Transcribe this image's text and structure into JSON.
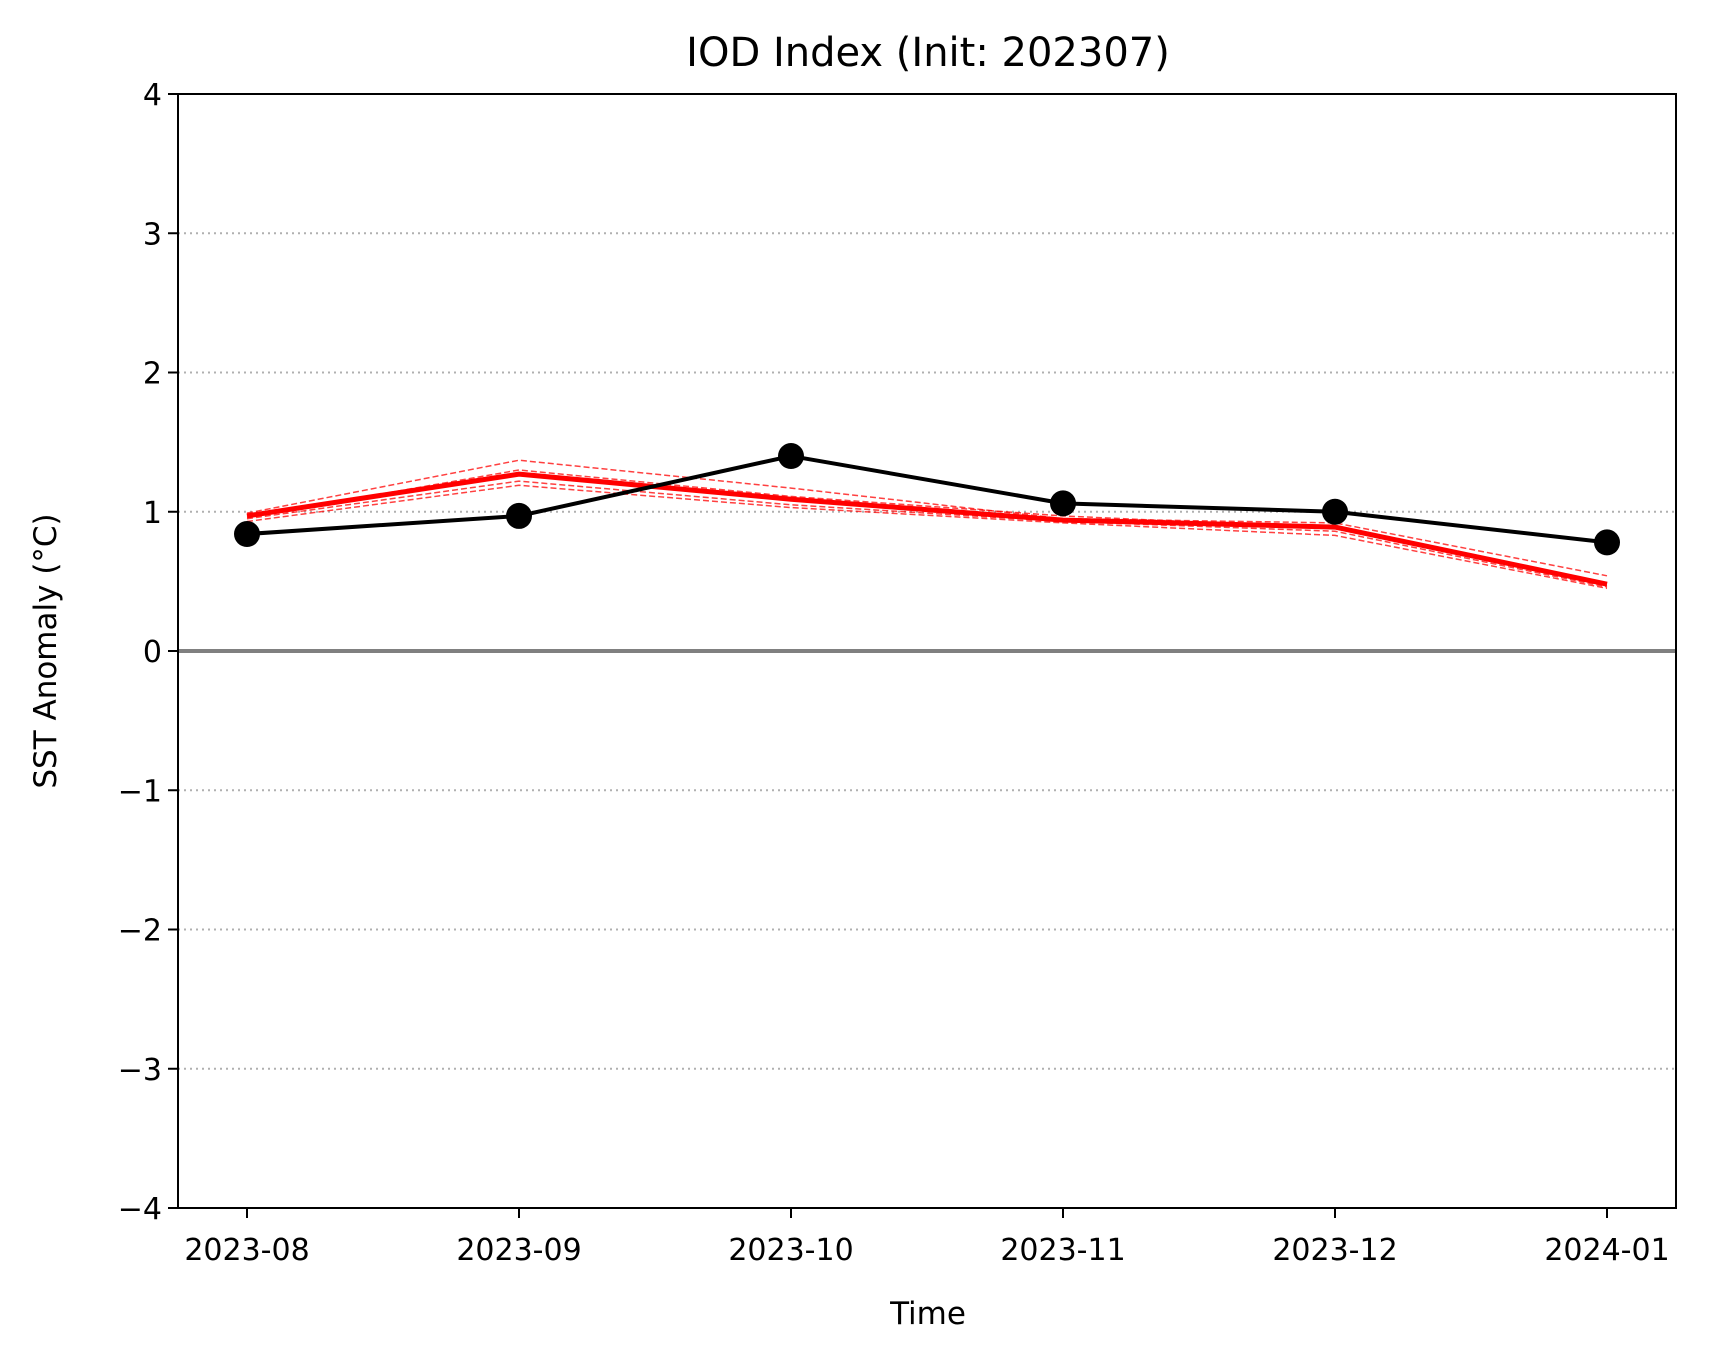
{
  "chart_data": {
    "type": "line",
    "title": "IOD Index (Init: 202307)",
    "xlabel": "Time",
    "ylabel": "SST Anomaly (°C)",
    "x": [
      "2023-08",
      "2023-09",
      "2023-10",
      "2023-11",
      "2023-12",
      "2024-01"
    ],
    "ylim": [
      -4,
      4
    ],
    "yticks": [
      -4,
      -3,
      -2,
      -1,
      0,
      1,
      2,
      3,
      4
    ],
    "grid": "horizontal dotted",
    "legend": "none",
    "zero_line_color": "#808080",
    "series": [
      {
        "style": "black solid with markers",
        "color": "#000000",
        "values": [
          0.84,
          0.97,
          1.4,
          1.06,
          1.0,
          0.78
        ]
      },
      {
        "style": "red solid thick",
        "color": "#ff0000",
        "values": [
          0.97,
          1.27,
          1.09,
          0.94,
          0.89,
          0.48
        ]
      },
      {
        "style": "red dashed thin",
        "color": "#ff0000",
        "values": [
          0.99,
          1.37,
          1.17,
          0.95,
          0.92,
          0.54
        ]
      },
      {
        "style": "red dashed thin",
        "color": "#ff0000",
        "values": [
          0.95,
          1.22,
          1.05,
          0.93,
          0.86,
          0.46
        ]
      },
      {
        "style": "red dashed thin",
        "color": "#ff0000",
        "values": [
          0.93,
          1.19,
          1.03,
          0.92,
          0.83,
          0.45
        ]
      },
      {
        "style": "red dashed thin",
        "color": "#ff0000",
        "values": [
          0.96,
          1.3,
          1.11,
          0.97,
          0.88,
          0.47
        ]
      }
    ]
  }
}
